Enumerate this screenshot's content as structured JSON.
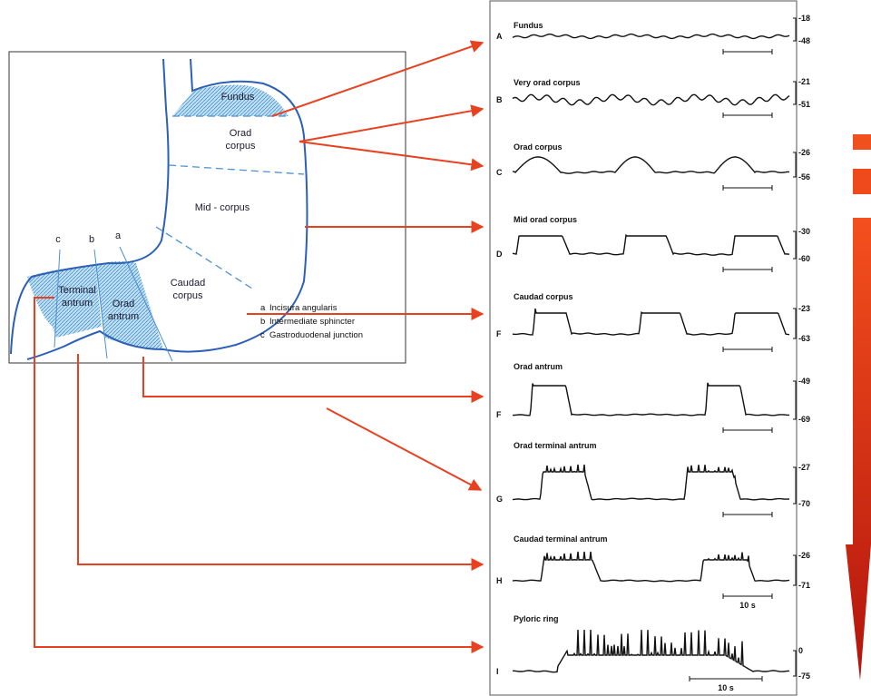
{
  "stomach": {
    "regions": [
      {
        "lines": [
          "Fundus"
        ]
      },
      {
        "lines": [
          "Orad",
          "corpus"
        ]
      },
      {
        "lines": [
          "Mid - corpus"
        ]
      },
      {
        "lines": [
          "Caudad",
          "corpus"
        ]
      },
      {
        "lines": [
          "Terminal",
          "antrum"
        ]
      },
      {
        "lines": [
          "Orad",
          "antrum"
        ]
      }
    ],
    "landmarks": [
      {
        "letter": "a",
        "name": "Incisura angularis"
      },
      {
        "letter": "b",
        "name": "Intermediate sphincter"
      },
      {
        "letter": "c",
        "name": "Gastroduodenal junction"
      }
    ]
  },
  "traces": [
    {
      "letter": "A",
      "label": "Fundus",
      "top": "-18",
      "bottom": "-48"
    },
    {
      "letter": "B",
      "label": "Very orad corpus",
      "top": "-21",
      "bottom": "-51"
    },
    {
      "letter": "C",
      "label": "Orad corpus",
      "top": "-26",
      "bottom": "-56"
    },
    {
      "letter": "D",
      "label": "Mid orad corpus",
      "top": "-30",
      "bottom": "-60"
    },
    {
      "letter": "F",
      "label": "Caudad corpus",
      "top": "-23",
      "bottom": "-63"
    },
    {
      "letter": "F",
      "label": "Orad antrum",
      "top": "-49",
      "bottom": "-69"
    },
    {
      "letter": "G",
      "label": "Orad terminal antrum",
      "top": "-27",
      "bottom": "-70"
    },
    {
      "letter": "H",
      "label": "Caudad terminal antrum",
      "top": "-26",
      "bottom": "-71",
      "scale": "10 s"
    },
    {
      "letter": "I",
      "label": "Pyloric ring",
      "top": "0",
      "bottom": "-75",
      "scale": "10 s"
    }
  ]
}
